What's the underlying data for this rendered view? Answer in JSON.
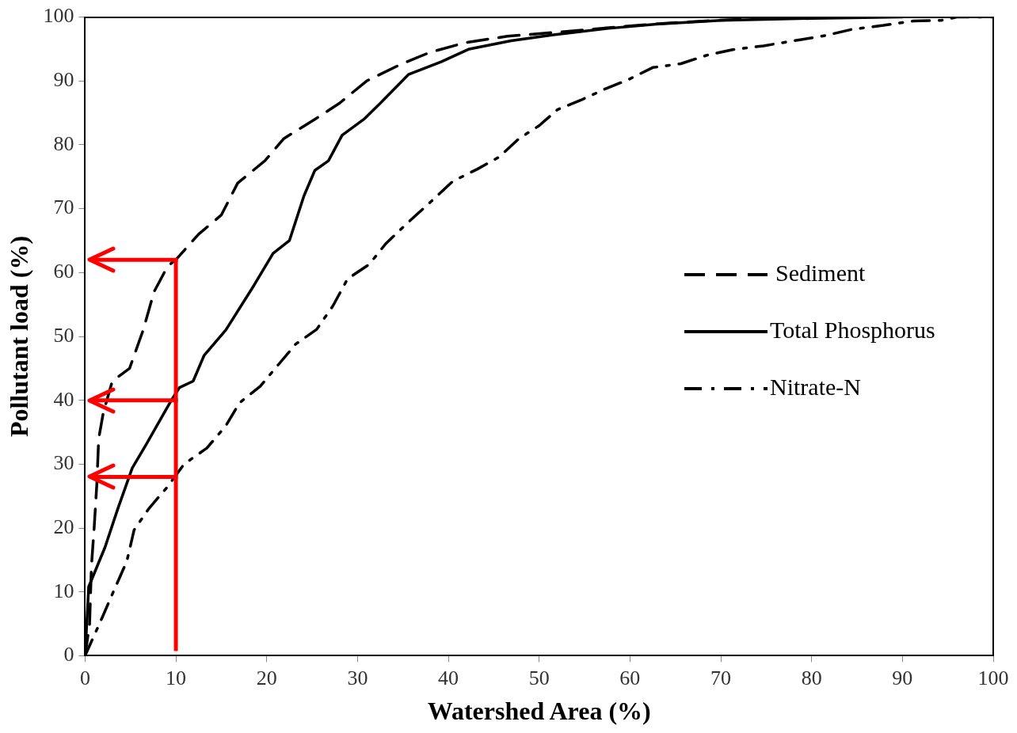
{
  "chart_data": {
    "type": "line",
    "xlabel": "Watershed Area (%)",
    "ylabel": "Pollutant load (%)",
    "xlim": [
      0,
      100
    ],
    "xticks": [
      0,
      10,
      20,
      30,
      40,
      50,
      60,
      70,
      80,
      90,
      100
    ],
    "ylim": [
      0,
      100
    ],
    "yticks": [
      0,
      10,
      20,
      30,
      40,
      50,
      60,
      70,
      80,
      90,
      100
    ],
    "grid": false,
    "legend": "right",
    "marker": "none",
    "series": [
      {
        "name": "Sediment",
        "color": "#000000",
        "line_style": "dashed",
        "x": [
          0,
          0.5,
          0.7,
          1,
          1.3,
          1.5,
          2,
          3,
          4.9,
          6.4,
          7.6,
          9.1,
          10,
          12.5,
          15,
          16.8,
          19.8,
          21.9,
          25.3,
          28,
          31,
          34.6,
          38,
          41.9,
          46.5,
          50.8,
          55,
          59,
          63.5,
          69.6,
          75,
          80
        ],
        "values": [
          0,
          5,
          14,
          20,
          27,
          34,
          38,
          43,
          45,
          51,
          57,
          61,
          62,
          66,
          69,
          74,
          77.5,
          81,
          84,
          86.5,
          90,
          92.5,
          94.5,
          96,
          97,
          97.5,
          98,
          98.5,
          99,
          99.5,
          99.8,
          100
        ]
      },
      {
        "name": "Total Phosphorus",
        "color": "#000000",
        "line_style": "solid",
        "x": [
          0,
          0.4,
          2.2,
          3.6,
          5.2,
          6.7,
          7.9,
          9.5,
          10.4,
          11.9,
          13.1,
          15.5,
          18.6,
          20.7,
          22.5,
          24.1,
          25.3,
          26.8,
          28.3,
          30.7,
          32.5,
          35.6,
          39.2,
          42.3,
          46.9,
          51.4,
          57.4,
          62.9,
          70,
          80,
          90
        ],
        "values": [
          0,
          10.8,
          17,
          23,
          29.4,
          33,
          36,
          40,
          42,
          43,
          47,
          51,
          58,
          63,
          65,
          72,
          76,
          77.5,
          81.5,
          84,
          86.5,
          91,
          93,
          95,
          96.3,
          97.2,
          98.2,
          98.9,
          99.5,
          99.8,
          100
        ]
      },
      {
        "name": "Nitrate-N",
        "color": "#000000",
        "line_style": "dashdot",
        "x": [
          0,
          1.8,
          3.2,
          4.6,
          5.4,
          7,
          9.1,
          10.9,
          13.4,
          15.5,
          17,
          19.3,
          21.3,
          23.2,
          25.5,
          27.3,
          28.9,
          31.3,
          33.1,
          35.3,
          38,
          40.5,
          43.2,
          45.6,
          47.8,
          50,
          52,
          54.6,
          57.2,
          59.8,
          62.5,
          65.6,
          68.4,
          71.3,
          74.7,
          78.1,
          81.5,
          84.5,
          87.9,
          91.2,
          94.3,
          96,
          100
        ],
        "values": [
          0,
          5.7,
          10.3,
          14.8,
          19.7,
          23,
          26.5,
          30,
          32.5,
          36,
          39.6,
          42.2,
          45.6,
          48.8,
          51.1,
          54.8,
          59,
          61.3,
          64.5,
          67.5,
          71,
          74.3,
          76.2,
          78.1,
          81,
          83,
          85.5,
          87,
          88.7,
          90.2,
          92.1,
          92.7,
          94,
          94.9,
          95.5,
          96.3,
          97.1,
          98.1,
          98.7,
          99.4,
          99.5,
          100,
          100
        ]
      }
    ],
    "ref_lines": [
      {
        "axis": "x",
        "value": 10,
        "color": "#ff0000"
      },
      {
        "axis": "y",
        "value": 62,
        "color": "#ff0000"
      },
      {
        "axis": "y",
        "value": 40,
        "color": "#ff0000"
      },
      {
        "axis": "y",
        "value": 28,
        "color": "#ff0000"
      }
    ]
  }
}
